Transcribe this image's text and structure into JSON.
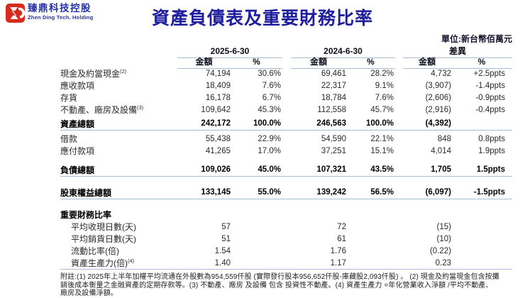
{
  "logo": {
    "chinese": "臻鼎科技控股",
    "english": "Zhen Ding Tech. Holding"
  },
  "title": "資產負債表及重要財務比率",
  "unit_note": "單位:新台幣佰萬元",
  "colors": {
    "title_blue": "#1e1e9e",
    "logo_red": "#d62b1f",
    "logo_blue": "#2230a8",
    "rule_line": "#a9bcd3"
  },
  "table": {
    "groups": [
      "2025-6-30",
      "2024-6-30",
      "差異"
    ],
    "subheaders": [
      "金額",
      "%",
      "金額",
      "%",
      "金額",
      "%"
    ],
    "rows": [
      {
        "label": "現金及約當現金",
        "sup": "(2)",
        "values": [
          "74,194",
          "30.6%",
          "69,461",
          "28.2%",
          "4,732",
          "+2.5ppts"
        ]
      },
      {
        "label": "應收款項",
        "values": [
          "18,409",
          "7.6%",
          "22,317",
          "9.1%",
          "(3,907)",
          "-1.4ppts"
        ]
      },
      {
        "label": "存貨",
        "values": [
          "16,178",
          "6.7%",
          "18,784",
          "7.6%",
          "(2,606)",
          "-0.9ppts"
        ]
      },
      {
        "label": "不動產、廠房及設備",
        "sup": "(3)",
        "values": [
          "109,642",
          "45.3%",
          "112,558",
          "45.7%",
          "(2,916)",
          "-0.4ppts"
        ]
      },
      {
        "label": "資產總額",
        "total": true,
        "line": true,
        "values": [
          "242,172",
          "100.0%",
          "246,563",
          "100.0%",
          "(4,392)",
          ""
        ]
      },
      {
        "label": "借款",
        "values": [
          "55,438",
          "22.9%",
          "54,590",
          "22.1%",
          "848",
          "0.8ppts"
        ]
      },
      {
        "label": "應付款項",
        "values": [
          "41,265",
          "17.0%",
          "37,251",
          "15.1%",
          "4,014",
          "1.9ppts"
        ]
      },
      {
        "label": "負債總額",
        "total": true,
        "line": true,
        "values": [
          "109,026",
          "45.0%",
          "107,321",
          "43.5%",
          "1,705",
          "1.5ppts"
        ]
      },
      {
        "label": "股東權益總額",
        "total": true,
        "line": true,
        "values": [
          "133,145",
          "55.0%",
          "139,242",
          "56.5%",
          "(6,097)",
          "-1.5ppts"
        ]
      },
      {
        "label": "重要財務比率",
        "total": true,
        "section": true,
        "values": [
          "",
          "",
          "",
          "",
          "",
          ""
        ]
      },
      {
        "label": "平均收現日數(天)",
        "indent": true,
        "values": [
          "57",
          "",
          "72",
          "",
          "(15)",
          ""
        ]
      },
      {
        "label": "平均銷貨日數(天)",
        "indent": true,
        "values": [
          "51",
          "",
          "61",
          "",
          "(10)",
          ""
        ]
      },
      {
        "label": "流動比率(倍)",
        "indent": true,
        "values": [
          "1.54",
          "",
          "1.76",
          "",
          "(0.22)",
          ""
        ]
      },
      {
        "label": "資產生產力(倍)",
        "sup": "(4)",
        "indent": true,
        "line": true,
        "values": [
          "1.40",
          "",
          "1.17",
          "",
          "0.23",
          ""
        ]
      }
    ]
  },
  "footnote_lines": [
    "附註:(1) 2025年上半年加權平均流通在外股數為954,559仟股 (實際發行股本956,652仟股-庫藏股2,093仟股) 。 (2) 現金及約當現金包含按攤",
    "銷後成本衡量之金融資產的定期存款等。(3) 不動產、廠房 及設備 包含 投資性不動產。(4) 資產生產力 =年化營業收入淨額 /平均不動產、",
    "廠房及設備淨額。"
  ]
}
